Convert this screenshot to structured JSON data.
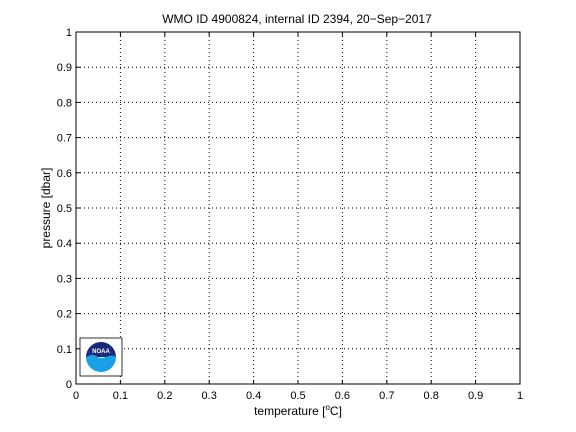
{
  "chart_data": {
    "type": "line",
    "title": "WMO ID 4900824, internal ID 2394, 20−Sep−2017",
    "xlabel_main": "temperature [",
    "xlabel_sup": "o",
    "xlabel_end": "C]",
    "ylabel": "pressure [dbar]",
    "xlim": [
      0,
      1
    ],
    "ylim": [
      0,
      1
    ],
    "x_ticks": [
      "0",
      "0.1",
      "0.2",
      "0.3",
      "0.4",
      "0.5",
      "0.6",
      "0.7",
      "0.8",
      "0.9",
      "1"
    ],
    "y_ticks": [
      "0",
      "0.1",
      "0.2",
      "0.3",
      "0.4",
      "0.5",
      "0.6",
      "0.7",
      "0.8",
      "0.9",
      "1"
    ],
    "grid": true,
    "grid_style": "dotted",
    "series": []
  },
  "logo": {
    "text": "NOAA",
    "colors": {
      "top": "#1a2a7a",
      "bottom": "#1aa0e6",
      "ring": "#ffffff"
    }
  }
}
